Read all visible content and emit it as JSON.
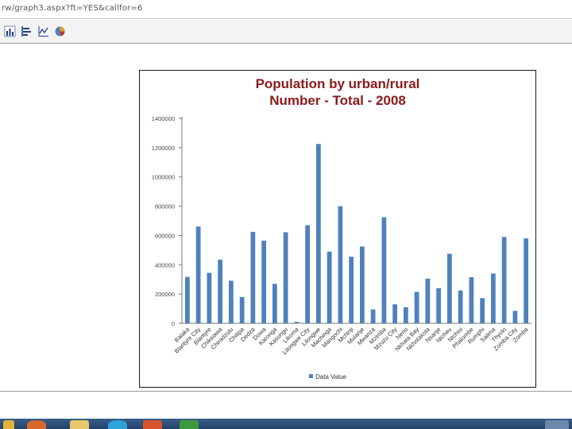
{
  "browser": {
    "address": "rw/graph3.aspx?ft=YES&callfor=6"
  },
  "toolbar": {
    "buttons": [
      "bar-chart-icon",
      "horizontal-bar-chart-icon",
      "line-chart-icon",
      "pie-chart-icon"
    ]
  },
  "chart_data": {
    "type": "bar",
    "title_line1": "Population by urban/rural",
    "title_line2": "Number - Total - 2008",
    "legend": [
      "Data Value"
    ],
    "legend_position": "bottom",
    "bar_color": "#4f81bd",
    "title_color": "#8b1a1a",
    "ylim": [
      0,
      1400000
    ],
    "y_ticks": [
      "0",
      "200000",
      "400000",
      "600000",
      "800000",
      "1000000",
      "1200000",
      "1400000"
    ],
    "grid": false,
    "categories": [
      "Balaka",
      "Blantyre City",
      "Blantyre",
      "Chikwawa",
      "Chiradzulu",
      "Chitipa",
      "Dedza",
      "Dowa",
      "Karonga",
      "Kasungu",
      "Likoma",
      "Lilongwe City",
      "Lilongwe",
      "Machinga",
      "Mangochi",
      "Mchinji",
      "Mulanje",
      "Mwanza",
      "Mzimba",
      "Mzuzu City",
      "Neno",
      "Nkhata Bay",
      "Nkhotakota",
      "Nsanje",
      "Ntcheu",
      "Ntchisi",
      "Phalombe",
      "Rumphi",
      "Salima",
      "Thyolo",
      "Zomba City",
      "Zomba"
    ],
    "series": [
      {
        "name": "Data Value",
        "values": [
          317000,
          661000,
          345000,
          435000,
          291000,
          180000,
          625000,
          565000,
          270000,
          622000,
          10000,
          670000,
          1225000,
          490000,
          800000,
          455000,
          525000,
          95000,
          725000,
          130000,
          110000,
          215000,
          305000,
          240000,
          475000,
          225000,
          315000,
          172000,
          340000,
          590000,
          85000,
          580000
        ]
      }
    ]
  },
  "taskbar": {
    "apps": [
      "folder-app",
      "firefox-app",
      "explorer-app",
      "skype-app",
      "powerpoint-app",
      "excel-app"
    ]
  }
}
